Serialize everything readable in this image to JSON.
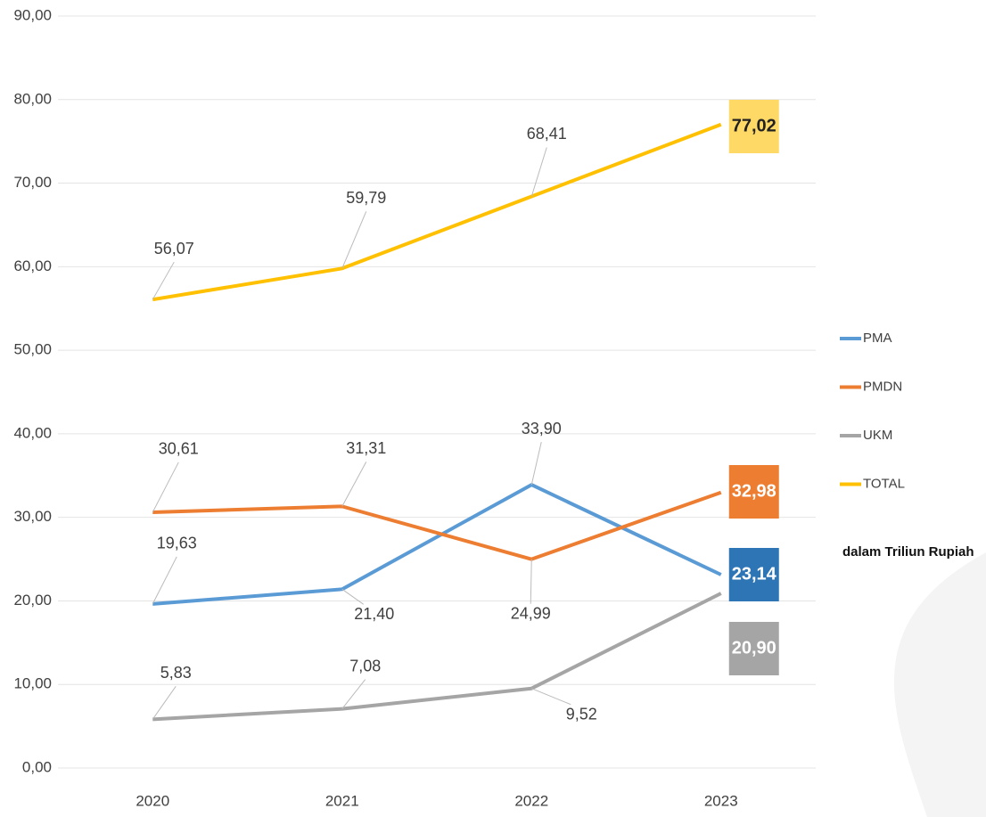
{
  "chart_data": {
    "type": "line",
    "categories": [
      "2020",
      "2021",
      "2022",
      "2023"
    ],
    "series": [
      {
        "name": "PMA",
        "color": "#5b9bd5",
        "box_color": "#2e75b6",
        "values": [
          19.63,
          21.4,
          33.9,
          23.14
        ],
        "value_labels": [
          "19,63",
          "21,40",
          "33,90",
          "23,14"
        ]
      },
      {
        "name": "PMDN",
        "color": "#ed7d31",
        "box_color": "#ed7d31",
        "values": [
          30.61,
          31.31,
          24.99,
          32.98
        ],
        "value_labels": [
          "30,61",
          "31,31",
          "24,99",
          "32,98"
        ]
      },
      {
        "name": "UKM",
        "color": "#a5a5a5",
        "box_color": "#a5a5a5",
        "values": [
          5.83,
          7.08,
          9.52,
          20.9
        ],
        "value_labels": [
          "5,83",
          "7,08",
          "9,52",
          "20,90"
        ]
      },
      {
        "name": "TOTAL",
        "color": "#ffc000",
        "box_color": "#ffd966",
        "values": [
          56.07,
          59.79,
          68.41,
          77.02
        ],
        "value_labels": [
          "56,07",
          "59,79",
          "68,41",
          "77,02"
        ]
      }
    ],
    "ylim": [
      0,
      90
    ],
    "yticks": [
      {
        "value": 0,
        "label": "0,00"
      },
      {
        "value": 10,
        "label": "10,00"
      },
      {
        "value": 20,
        "label": "20,00"
      },
      {
        "value": 30,
        "label": "30,00"
      },
      {
        "value": 40,
        "label": "40,00"
      },
      {
        "value": 50,
        "label": "50,00"
      },
      {
        "value": 60,
        "label": "60,00"
      },
      {
        "value": 70,
        "label": "70,00"
      },
      {
        "value": 80,
        "label": "80,00"
      },
      {
        "value": 90,
        "label": "90,00"
      }
    ],
    "grid": true,
    "legend": "right",
    "annotation": "dalam Triliun Rupiah"
  }
}
